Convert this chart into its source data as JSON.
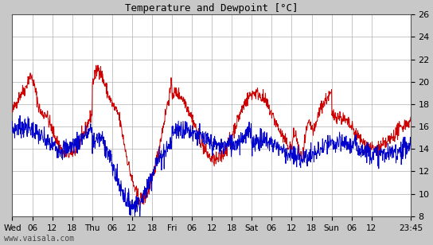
{
  "title": "Temperature and Dewpoint [°C]",
  "ylim": [
    8,
    26
  ],
  "yticks": [
    8,
    10,
    12,
    14,
    16,
    18,
    20,
    22,
    24,
    26
  ],
  "background_color": "#c8c8c8",
  "plot_bg_color": "#ffffff",
  "grid_color": "#b0b0b0",
  "temp_color": "#cc0000",
  "dewpoint_color": "#0000cc",
  "watermark": "www.vaisala.com",
  "tick_labels": [
    "Wed",
    "06",
    "12",
    "18",
    "Thu",
    "06",
    "12",
    "18",
    "Fri",
    "06",
    "12",
    "18",
    "Sat",
    "06",
    "12",
    "18",
    "Sun",
    "06",
    "12",
    "23:45"
  ],
  "tick_hours": [
    0,
    6,
    12,
    18,
    24,
    30,
    36,
    42,
    48,
    54,
    60,
    66,
    72,
    78,
    84,
    90,
    96,
    102,
    108,
    119.75
  ],
  "total_hours": 119.75
}
